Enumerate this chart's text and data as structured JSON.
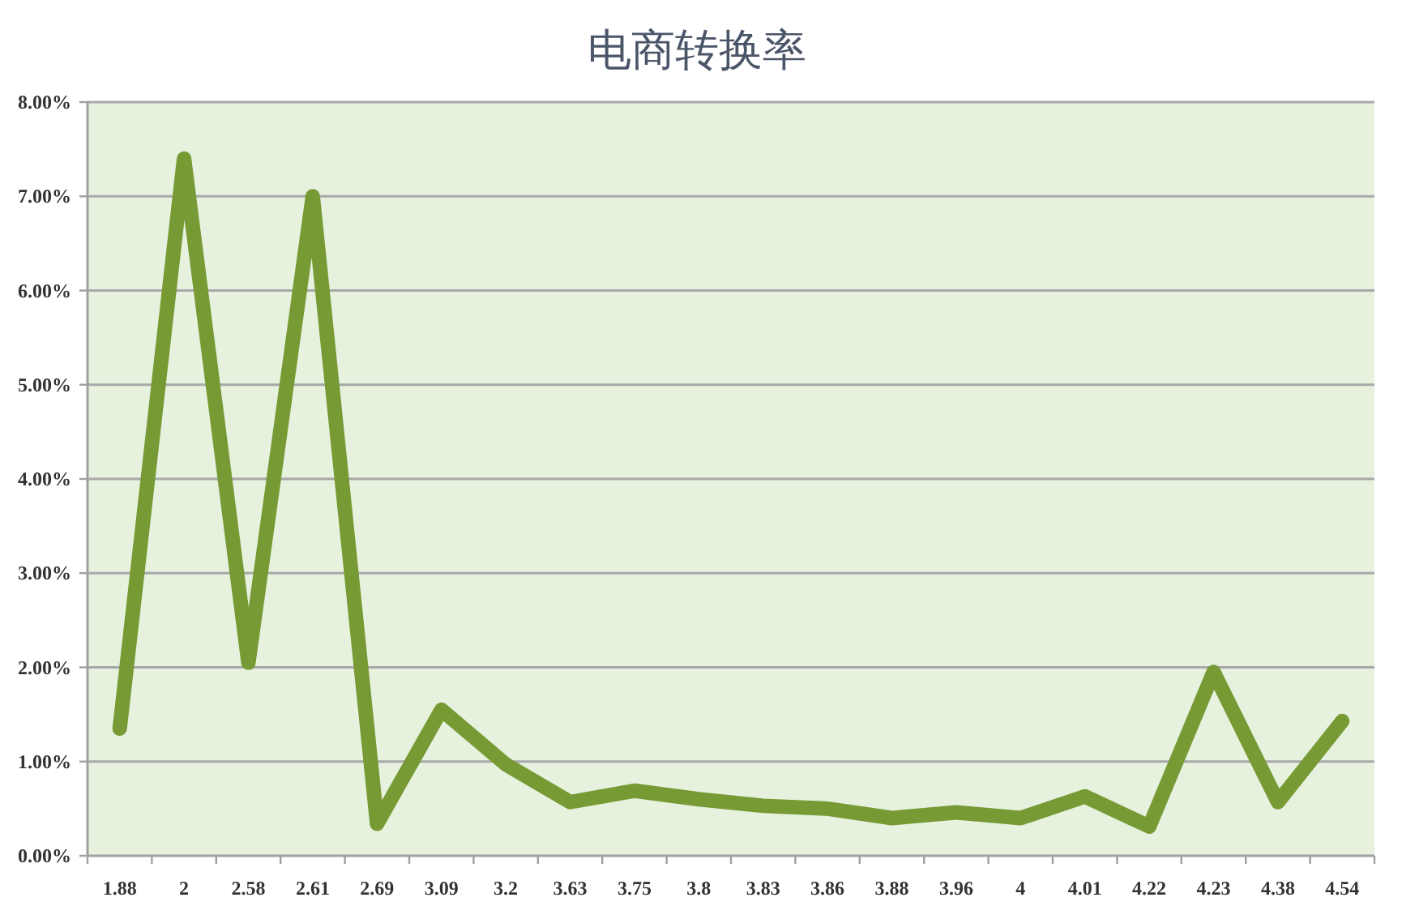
{
  "chart_data": {
    "type": "line",
    "title": "电商转换率",
    "categories": [
      "1.88",
      "2",
      "2.58",
      "2.61",
      "2.69",
      "3.09",
      "3.2",
      "3.63",
      "3.75",
      "3.8",
      "3.83",
      "3.86",
      "3.88",
      "3.96",
      "4",
      "4.01",
      "4.22",
      "4.23",
      "4.38",
      "4.54"
    ],
    "series": [
      {
        "color": "#779a35",
        "values": [
          1.35,
          7.4,
          2.05,
          7.0,
          0.34,
          1.55,
          0.97,
          0.57,
          0.69,
          0.6,
          0.53,
          0.5,
          0.4,
          0.46,
          0.4,
          0.63,
          0.31,
          1.95,
          0.57,
          1.43
        ]
      }
    ],
    "ylim": [
      0,
      8
    ],
    "yticks": [
      {
        "value": 0,
        "label": "0.00%"
      },
      {
        "value": 1,
        "label": "1.00%"
      },
      {
        "value": 2,
        "label": "2.00%"
      },
      {
        "value": 3,
        "label": "3.00%"
      },
      {
        "value": 4,
        "label": "4.00%"
      },
      {
        "value": 5,
        "label": "5.00%"
      },
      {
        "value": 6,
        "label": "6.00%"
      },
      {
        "value": 7,
        "label": "7.00%"
      },
      {
        "value": 8,
        "label": "8.00%"
      }
    ],
    "grid": "y"
  }
}
